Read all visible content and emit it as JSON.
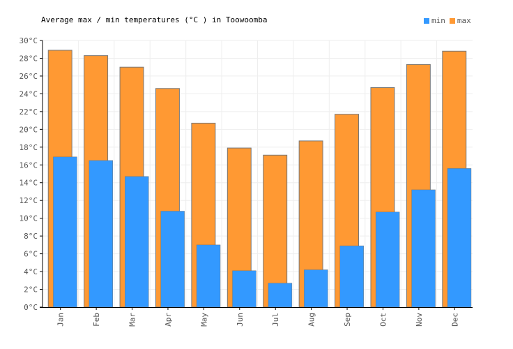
{
  "title": "Average max / min temperatures (°C ) in Toowoomba",
  "legend": {
    "min_label": "min",
    "max_label": "max"
  },
  "colors": {
    "min": "#3399ff",
    "max": "#ff9933",
    "outline": "#777777",
    "grid": "#eeeeee",
    "axis": "#000000"
  },
  "chart_data": {
    "type": "bar",
    "title": "Average max / min temperatures (°C ) in Toowoomba",
    "categories": [
      "Jan",
      "Feb",
      "Mar",
      "Apr",
      "May",
      "Jun",
      "Jul",
      "Aug",
      "Sep",
      "Oct",
      "Nov",
      "Dec"
    ],
    "series": [
      {
        "name": "max",
        "values": [
          28.9,
          28.3,
          27.0,
          24.6,
          20.7,
          17.9,
          17.1,
          18.7,
          21.7,
          24.7,
          27.3,
          28.8
        ]
      },
      {
        "name": "min",
        "values": [
          16.9,
          16.5,
          14.7,
          10.8,
          7.0,
          4.1,
          2.7,
          4.2,
          6.9,
          10.7,
          13.2,
          15.6
        ]
      }
    ],
    "ylim": [
      0,
      30
    ],
    "yticks": [
      "0°C",
      "2°C",
      "4°C",
      "6°C",
      "8°C",
      "10°C",
      "12°C",
      "14°C",
      "16°C",
      "18°C",
      "20°C",
      "22°C",
      "24°C",
      "26°C",
      "28°C",
      "30°C"
    ],
    "grid": true,
    "legend_position": "top-right"
  }
}
